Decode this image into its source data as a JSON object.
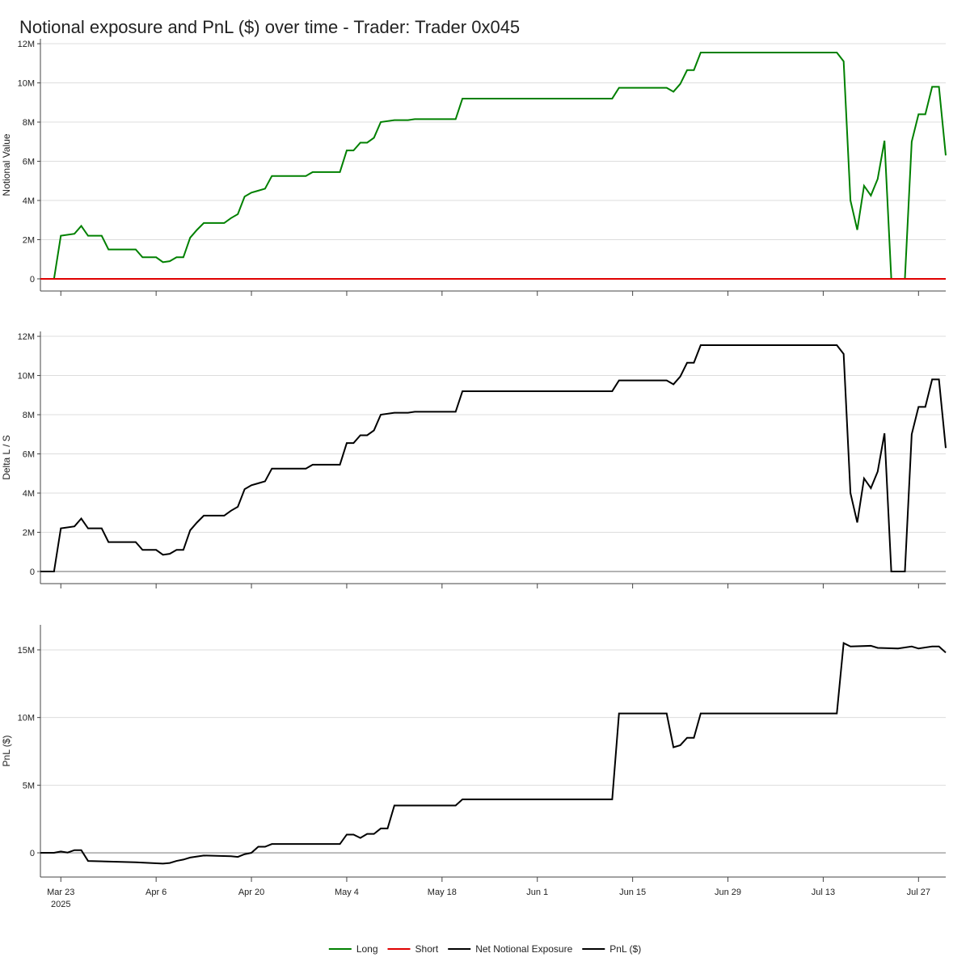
{
  "title": "Notional exposure and PnL ($) over time - Trader: Trader 0x045",
  "chart_data": [
    {
      "type": "line",
      "ylabel": "Notional Value",
      "xlim": [
        "2025-03-20",
        "2025-07-31"
      ],
      "xticks": [
        "2025-03-23",
        "2025-04-06",
        "2025-04-20",
        "2025-05-04",
        "2025-05-18",
        "2025-06-01",
        "2025-06-15",
        "2025-06-29",
        "2025-07-13",
        "2025-07-27"
      ],
      "ylim": [
        -620000,
        12250000
      ],
      "yticks": [
        0,
        {
          "value": 2000000,
          "label": "2M"
        },
        {
          "value": 4000000,
          "label": "4M"
        },
        {
          "value": 6000000,
          "label": "6M"
        },
        {
          "value": 8000000,
          "label": "8M"
        },
        {
          "value": 10000000,
          "label": "10M"
        },
        {
          "value": 12000000,
          "label": "12M"
        }
      ],
      "grid": true,
      "zero_line": false,
      "x": [
        "2025-03-20",
        "2025-03-22",
        "2025-03-23",
        "2025-03-25",
        "2025-03-26",
        "2025-03-27",
        "2025-03-29",
        "2025-03-30",
        "2025-04-03",
        "2025-04-04",
        "2025-04-06",
        "2025-04-07",
        "2025-04-08",
        "2025-04-09",
        "2025-04-10",
        "2025-04-11",
        "2025-04-12",
        "2025-04-13",
        "2025-04-16",
        "2025-04-17",
        "2025-04-18",
        "2025-04-19",
        "2025-04-20",
        "2025-04-21",
        "2025-04-22",
        "2025-04-23",
        "2025-04-28",
        "2025-04-29",
        "2025-05-03",
        "2025-05-04",
        "2025-05-05",
        "2025-05-06",
        "2025-05-07",
        "2025-05-08",
        "2025-05-09",
        "2025-05-10",
        "2025-05-11",
        "2025-05-13",
        "2025-05-14",
        "2025-05-20",
        "2025-05-21",
        "2025-06-12",
        "2025-06-13",
        "2025-06-20",
        "2025-06-21",
        "2025-06-22",
        "2025-06-23",
        "2025-06-24",
        "2025-06-25",
        "2025-07-15",
        "2025-07-16",
        "2025-07-17",
        "2025-07-18",
        "2025-07-19",
        "2025-07-20",
        "2025-07-21",
        "2025-07-22",
        "2025-07-23",
        "2025-07-25",
        "2025-07-26",
        "2025-07-27",
        "2025-07-28",
        "2025-07-29",
        "2025-07-30",
        "2025-07-31"
      ],
      "series": [
        {
          "name": "Long",
          "color": "#008000",
          "values": [
            0,
            0,
            2200000,
            2300000,
            2700000,
            2200000,
            2200000,
            1500000,
            1500000,
            1100000,
            1100000,
            850000,
            900000,
            1100000,
            1100000,
            2100000,
            2500000,
            2850000,
            2850000,
            3100000,
            3300000,
            4200000,
            4400000,
            4500000,
            4600000,
            5250000,
            5250000,
            5450000,
            5450000,
            6550000,
            6550000,
            6950000,
            6950000,
            7200000,
            8000000,
            8050000,
            8100000,
            8100000,
            8150000,
            8150000,
            9200000,
            9200000,
            9750000,
            9750000,
            9550000,
            9950000,
            10650000,
            10650000,
            11550000,
            11550000,
            11100000,
            4000000,
            2500000,
            4750000,
            4250000,
            5100000,
            7050000,
            0,
            0,
            7000000,
            8400000,
            8400000,
            9800000,
            9800000,
            6300000
          ]
        },
        {
          "name": "Short",
          "color": "#e00000",
          "values": [
            0,
            0,
            0,
            0,
            0,
            0,
            0,
            0,
            0,
            0,
            0,
            0,
            0,
            0,
            0,
            0,
            0,
            0,
            0,
            0,
            0,
            0,
            0,
            0,
            0,
            0,
            0,
            0,
            0,
            0,
            0,
            0,
            0,
            0,
            0,
            0,
            0,
            0,
            0,
            0,
            0,
            0,
            0,
            0,
            0,
            0,
            0,
            0,
            0,
            0,
            0,
            0,
            0,
            0,
            0,
            0,
            0,
            0,
            0,
            0,
            0,
            0,
            0,
            0,
            0
          ]
        }
      ]
    },
    {
      "type": "line",
      "ylabel": "Delta L / S",
      "xlim": [
        "2025-03-20",
        "2025-07-31"
      ],
      "xticks": [
        "2025-03-23",
        "2025-04-06",
        "2025-04-20",
        "2025-05-04",
        "2025-05-18",
        "2025-06-01",
        "2025-06-15",
        "2025-06-29",
        "2025-07-13",
        "2025-07-27"
      ],
      "ylim": [
        -620000,
        12250000
      ],
      "yticks": [
        0,
        {
          "value": 2000000,
          "label": "2M"
        },
        {
          "value": 4000000,
          "label": "4M"
        },
        {
          "value": 6000000,
          "label": "6M"
        },
        {
          "value": 8000000,
          "label": "8M"
        },
        {
          "value": 10000000,
          "label": "10M"
        },
        {
          "value": 12000000,
          "label": "12M"
        }
      ],
      "grid": true,
      "zero_line": true,
      "x": [
        "2025-03-20",
        "2025-03-22",
        "2025-03-23",
        "2025-03-25",
        "2025-03-26",
        "2025-03-27",
        "2025-03-29",
        "2025-03-30",
        "2025-04-03",
        "2025-04-04",
        "2025-04-06",
        "2025-04-07",
        "2025-04-08",
        "2025-04-09",
        "2025-04-10",
        "2025-04-11",
        "2025-04-12",
        "2025-04-13",
        "2025-04-16",
        "2025-04-17",
        "2025-04-18",
        "2025-04-19",
        "2025-04-20",
        "2025-04-21",
        "2025-04-22",
        "2025-04-23",
        "2025-04-28",
        "2025-04-29",
        "2025-05-03",
        "2025-05-04",
        "2025-05-05",
        "2025-05-06",
        "2025-05-07",
        "2025-05-08",
        "2025-05-09",
        "2025-05-10",
        "2025-05-11",
        "2025-05-13",
        "2025-05-14",
        "2025-05-20",
        "2025-05-21",
        "2025-06-12",
        "2025-06-13",
        "2025-06-20",
        "2025-06-21",
        "2025-06-22",
        "2025-06-23",
        "2025-06-24",
        "2025-06-25",
        "2025-07-15",
        "2025-07-16",
        "2025-07-17",
        "2025-07-18",
        "2025-07-19",
        "2025-07-20",
        "2025-07-21",
        "2025-07-22",
        "2025-07-23",
        "2025-07-25",
        "2025-07-26",
        "2025-07-27",
        "2025-07-28",
        "2025-07-29",
        "2025-07-30",
        "2025-07-31"
      ],
      "series": [
        {
          "name": "Net Notional Exposure",
          "color": "#000000",
          "values": [
            0,
            0,
            2200000,
            2300000,
            2700000,
            2200000,
            2200000,
            1500000,
            1500000,
            1100000,
            1100000,
            850000,
            900000,
            1100000,
            1100000,
            2100000,
            2500000,
            2850000,
            2850000,
            3100000,
            3300000,
            4200000,
            4400000,
            4500000,
            4600000,
            5250000,
            5250000,
            5450000,
            5450000,
            6550000,
            6550000,
            6950000,
            6950000,
            7200000,
            8000000,
            8050000,
            8100000,
            8100000,
            8150000,
            8150000,
            9200000,
            9200000,
            9750000,
            9750000,
            9550000,
            9950000,
            10650000,
            10650000,
            11550000,
            11550000,
            11100000,
            4000000,
            2500000,
            4750000,
            4250000,
            5100000,
            7050000,
            0,
            0,
            7000000,
            8400000,
            8400000,
            9800000,
            9800000,
            6300000
          ]
        }
      ]
    },
    {
      "type": "line",
      "ylabel": "PnL ($)",
      "xlim": [
        "2025-03-20",
        "2025-07-31"
      ],
      "xticks": [
        {
          "value": "2025-03-23",
          "label": "Mar 23\n2025"
        },
        {
          "value": "2025-04-06",
          "label": "Apr 6"
        },
        {
          "value": "2025-04-20",
          "label": "Apr 20"
        },
        {
          "value": "2025-05-04",
          "label": "May 4"
        },
        {
          "value": "2025-05-18",
          "label": "May 18"
        },
        {
          "value": "2025-06-01",
          "label": "Jun 1"
        },
        {
          "value": "2025-06-15",
          "label": "Jun 15"
        },
        {
          "value": "2025-06-29",
          "label": "Jun 29"
        },
        {
          "value": "2025-07-13",
          "label": "Jul 13"
        },
        {
          "value": "2025-07-27",
          "label": "Jul 27"
        }
      ],
      "ylim": [
        -1790000,
        16850000
      ],
      "yticks": [
        0,
        {
          "value": 5000000,
          "label": "5M"
        },
        {
          "value": 10000000,
          "label": "10M"
        },
        {
          "value": 15000000,
          "label": "15M"
        }
      ],
      "grid": true,
      "zero_line": true,
      "x": [
        "2025-03-20",
        "2025-03-22",
        "2025-03-23",
        "2025-03-24",
        "2025-03-25",
        "2025-03-26",
        "2025-03-27",
        "2025-04-03",
        "2025-04-07",
        "2025-04-08",
        "2025-04-09",
        "2025-04-10",
        "2025-04-11",
        "2025-04-13",
        "2025-04-17",
        "2025-04-18",
        "2025-04-19",
        "2025-04-20",
        "2025-04-21",
        "2025-04-22",
        "2025-04-23",
        "2025-05-03",
        "2025-05-04",
        "2025-05-05",
        "2025-05-06",
        "2025-05-07",
        "2025-05-08",
        "2025-05-09",
        "2025-05-10",
        "2025-05-11",
        "2025-05-20",
        "2025-05-21",
        "2025-06-12",
        "2025-06-13",
        "2025-06-20",
        "2025-06-21",
        "2025-06-22",
        "2025-06-23",
        "2025-06-24",
        "2025-06-25",
        "2025-07-15",
        "2025-07-16",
        "2025-07-17",
        "2025-07-20",
        "2025-07-21",
        "2025-07-24",
        "2025-07-26",
        "2025-07-27",
        "2025-07-29",
        "2025-07-30",
        "2025-07-31"
      ],
      "series": [
        {
          "name": "PnL ($)",
          "color": "#000000",
          "values": [
            0,
            0,
            100000,
            20000,
            200000,
            200000,
            -600000,
            -700000,
            -800000,
            -750000,
            -600000,
            -500000,
            -350000,
            -200000,
            -250000,
            -300000,
            -100000,
            0,
            450000,
            450000,
            650000,
            650000,
            1350000,
            1350000,
            1100000,
            1400000,
            1400000,
            1800000,
            1800000,
            3500000,
            3500000,
            3950000,
            3950000,
            10300000,
            10300000,
            7800000,
            7950000,
            8500000,
            8500000,
            10300000,
            10300000,
            15500000,
            15250000,
            15300000,
            15150000,
            15100000,
            15250000,
            15100000,
            15250000,
            15250000,
            14800000
          ]
        }
      ]
    }
  ]
}
